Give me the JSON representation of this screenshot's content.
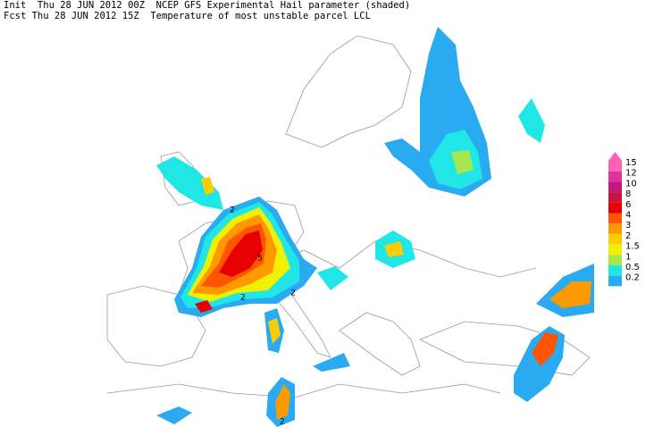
{
  "header": {
    "line1": "Init  Thu 28 JUN 2012 00Z  NCEP GFS Experimental Hail parameter (shaded)",
    "line2": "Fcst Thu 28 JUN 2012 15Z  Temperature of most unstable parcel LCL"
  },
  "legend": {
    "labels": [
      "15",
      "12",
      "10",
      "8",
      "6",
      "4",
      "3",
      "2",
      "1.5",
      "1",
      "0.5",
      "0.2"
    ],
    "colors": [
      "#ff5fb4",
      "#e0339c",
      "#c0187e",
      "#c8143c",
      "#e60000",
      "#ff5500",
      "#ff9900",
      "#ffcc00",
      "#f0f000",
      "#a8e650",
      "#20e6e6",
      "#2aaaf0"
    ]
  },
  "contour_labels": [
    {
      "text": "2"
    },
    {
      "text": "5"
    },
    {
      "text": "2"
    },
    {
      "text": "2"
    },
    {
      "text": "2"
    }
  ]
}
